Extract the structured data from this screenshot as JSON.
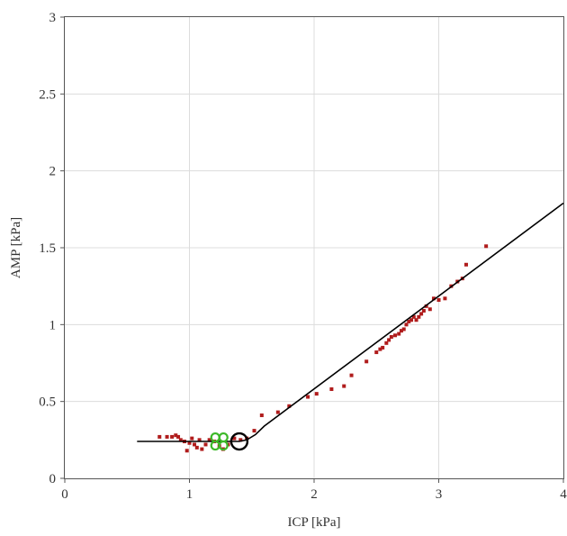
{
  "chart_data": {
    "type": "scatter",
    "title": "",
    "xlabel": "ICP [kPa]",
    "ylabel": "AMP [kPa]",
    "xlim": [
      0,
      4
    ],
    "ylim": [
      0,
      3
    ],
    "x_ticks": [
      "0",
      "1",
      "2",
      "3",
      "4"
    ],
    "y_ticks": [
      "0",
      "0.5",
      "1",
      "1.5",
      "2",
      "2.5",
      "3"
    ],
    "grid": true,
    "colors": {
      "points": "#b01c1c",
      "fit_line": "#000000",
      "green_marker": "#3cb828",
      "circle_marker": "#000000"
    },
    "series": [
      {
        "kind": "scatter",
        "points": [
          [
            0.76,
            0.27
          ],
          [
            0.82,
            0.27
          ],
          [
            0.86,
            0.27
          ],
          [
            0.89,
            0.28
          ],
          [
            0.91,
            0.27
          ],
          [
            0.93,
            0.25
          ],
          [
            0.96,
            0.24
          ],
          [
            0.98,
            0.18
          ],
          [
            1.0,
            0.23
          ],
          [
            1.02,
            0.26
          ],
          [
            1.04,
            0.22
          ],
          [
            1.06,
            0.2
          ],
          [
            1.08,
            0.25
          ],
          [
            1.1,
            0.19
          ],
          [
            1.13,
            0.22
          ],
          [
            1.16,
            0.25
          ],
          [
            1.2,
            0.24
          ],
          [
            1.24,
            0.21
          ],
          [
            1.27,
            0.19
          ],
          [
            1.31,
            0.22
          ],
          [
            1.36,
            0.26
          ],
          [
            1.41,
            0.25
          ],
          [
            1.46,
            0.26
          ],
          [
            1.52,
            0.31
          ],
          [
            1.58,
            0.41
          ],
          [
            1.71,
            0.43
          ],
          [
            1.8,
            0.47
          ],
          [
            1.95,
            0.53
          ],
          [
            2.02,
            0.55
          ],
          [
            2.14,
            0.58
          ],
          [
            2.24,
            0.6
          ],
          [
            2.3,
            0.67
          ],
          [
            2.42,
            0.76
          ],
          [
            2.5,
            0.82
          ],
          [
            2.53,
            0.84
          ],
          [
            2.55,
            0.85
          ],
          [
            2.58,
            0.88
          ],
          [
            2.6,
            0.9
          ],
          [
            2.62,
            0.92
          ],
          [
            2.65,
            0.93
          ],
          [
            2.68,
            0.94
          ],
          [
            2.7,
            0.96
          ],
          [
            2.72,
            0.97
          ],
          [
            2.74,
            1.0
          ],
          [
            2.76,
            1.02
          ],
          [
            2.78,
            1.03
          ],
          [
            2.8,
            1.05
          ],
          [
            2.82,
            1.03
          ],
          [
            2.84,
            1.05
          ],
          [
            2.86,
            1.07
          ],
          [
            2.88,
            1.09
          ],
          [
            2.9,
            1.12
          ],
          [
            2.93,
            1.1
          ],
          [
            2.96,
            1.17
          ],
          [
            3.0,
            1.16
          ],
          [
            3.05,
            1.17
          ],
          [
            3.1,
            1.25
          ],
          [
            3.15,
            1.28
          ],
          [
            3.19,
            1.3
          ],
          [
            3.22,
            1.39
          ],
          [
            3.38,
            1.51
          ]
        ]
      },
      {
        "kind": "line",
        "points": [
          [
            0.58,
            0.24
          ],
          [
            1.4,
            0.24
          ],
          [
            1.46,
            0.25
          ],
          [
            1.53,
            0.285
          ],
          [
            1.6,
            0.34
          ],
          [
            4.0,
            1.79
          ]
        ]
      }
    ],
    "markers": [
      {
        "shape": "clover",
        "x": 1.24,
        "y": 0.24
      },
      {
        "shape": "circle",
        "x": 1.4,
        "y": 0.24
      }
    ]
  }
}
